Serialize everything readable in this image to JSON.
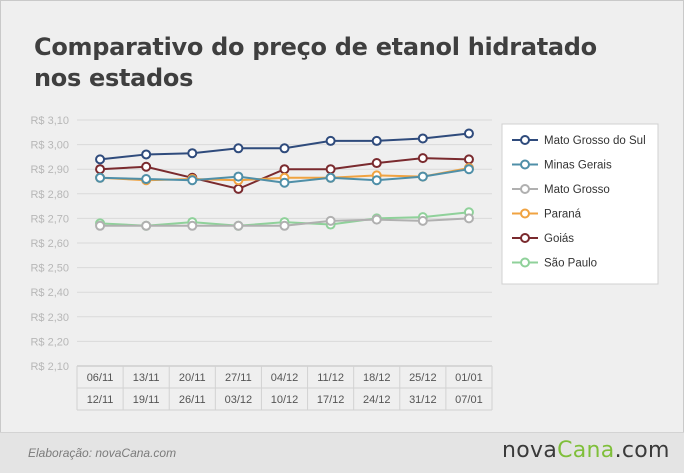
{
  "title": "Comparativo do preço de etanol hidratado nos estados",
  "credit": "Elaboração: novaCana.com",
  "logo": {
    "part1": "nova",
    "part2": "Cana",
    "part3": ".com"
  },
  "chart_data": {
    "type": "line",
    "title": "Comparativo do preço de etanol hidratado nos estados",
    "xlabel": "",
    "ylabel": "",
    "y_ticks": [
      "R$ 3,10",
      "R$ 3,00",
      "R$ 2,90",
      "R$ 2,80",
      "R$ 2,70",
      "R$ 2,60",
      "R$ 2,50",
      "R$ 2,40",
      "R$ 2,30",
      "R$ 2,20",
      "R$ 2,10"
    ],
    "ylim": [
      2.1,
      3.1
    ],
    "grid": true,
    "legend_position": "right",
    "categories": [
      {
        "start": "06/11",
        "end": "12/11"
      },
      {
        "start": "13/11",
        "end": "19/11"
      },
      {
        "start": "20/11",
        "end": "26/11"
      },
      {
        "start": "27/11",
        "end": "03/12"
      },
      {
        "start": "04/12",
        "end": "10/12"
      },
      {
        "start": "11/12",
        "end": "17/12"
      },
      {
        "start": "18/12",
        "end": "24/12"
      },
      {
        "start": "25/12",
        "end": "31/12"
      },
      {
        "start": "01/01",
        "end": "07/01"
      }
    ],
    "series": [
      {
        "name": "Mato Grosso do Sul",
        "color": "#2f4b7c",
        "values": [
          2.94,
          2.96,
          2.965,
          2.985,
          2.985,
          3.015,
          3.015,
          3.025,
          3.045
        ]
      },
      {
        "name": "Minas Gerais",
        "color": "#4f8fa8",
        "values": [
          2.865,
          2.86,
          2.855,
          2.87,
          2.845,
          2.865,
          2.855,
          2.87,
          2.9
        ]
      },
      {
        "name": "Mato Grosso",
        "color": "#b0b0b0",
        "values": [
          2.67,
          2.67,
          2.67,
          2.67,
          2.67,
          2.69,
          2.695,
          2.69,
          2.7
        ]
      },
      {
        "name": "Paraná",
        "color": "#f0a341",
        "values": [
          2.865,
          2.855,
          2.86,
          2.855,
          2.865,
          2.865,
          2.875,
          2.87,
          2.905
        ]
      },
      {
        "name": "Goiás",
        "color": "#7a2a2e",
        "values": [
          2.9,
          2.91,
          2.865,
          2.82,
          2.9,
          2.9,
          2.925,
          2.945,
          2.94
        ]
      },
      {
        "name": "São Paulo",
        "color": "#8fd19a",
        "values": [
          2.68,
          2.67,
          2.685,
          2.67,
          2.685,
          2.675,
          2.7,
          2.705,
          2.725
        ]
      }
    ]
  }
}
